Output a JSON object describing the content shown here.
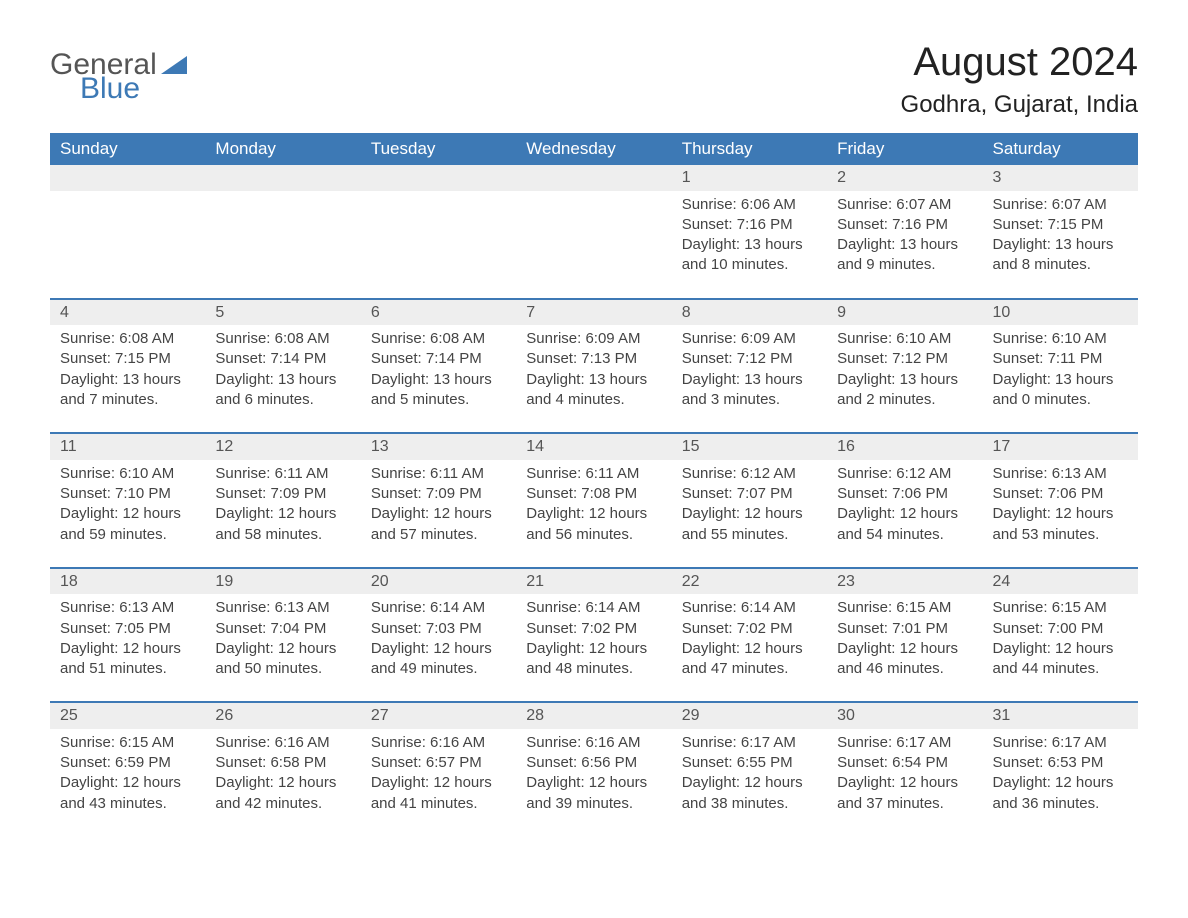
{
  "logo": {
    "general": "General",
    "blue": "Blue",
    "icon_color": "#3d79b5"
  },
  "title": "August 2024",
  "location": "Godhra, Gujarat, India",
  "colors": {
    "header_bg": "#3d79b5",
    "header_text": "#ffffff",
    "daynum_bg": "#eeeeee",
    "row_border": "#3d79b5",
    "body_text": "#444444",
    "page_bg": "#ffffff"
  },
  "day_names": [
    "Sunday",
    "Monday",
    "Tuesday",
    "Wednesday",
    "Thursday",
    "Friday",
    "Saturday"
  ],
  "weeks": [
    [
      null,
      null,
      null,
      null,
      {
        "n": "1",
        "sunrise": "Sunrise: 6:06 AM",
        "sunset": "Sunset: 7:16 PM",
        "daylight": "Daylight: 13 hours and 10 minutes."
      },
      {
        "n": "2",
        "sunrise": "Sunrise: 6:07 AM",
        "sunset": "Sunset: 7:16 PM",
        "daylight": "Daylight: 13 hours and 9 minutes."
      },
      {
        "n": "3",
        "sunrise": "Sunrise: 6:07 AM",
        "sunset": "Sunset: 7:15 PM",
        "daylight": "Daylight: 13 hours and 8 minutes."
      }
    ],
    [
      {
        "n": "4",
        "sunrise": "Sunrise: 6:08 AM",
        "sunset": "Sunset: 7:15 PM",
        "daylight": "Daylight: 13 hours and 7 minutes."
      },
      {
        "n": "5",
        "sunrise": "Sunrise: 6:08 AM",
        "sunset": "Sunset: 7:14 PM",
        "daylight": "Daylight: 13 hours and 6 minutes."
      },
      {
        "n": "6",
        "sunrise": "Sunrise: 6:08 AM",
        "sunset": "Sunset: 7:14 PM",
        "daylight": "Daylight: 13 hours and 5 minutes."
      },
      {
        "n": "7",
        "sunrise": "Sunrise: 6:09 AM",
        "sunset": "Sunset: 7:13 PM",
        "daylight": "Daylight: 13 hours and 4 minutes."
      },
      {
        "n": "8",
        "sunrise": "Sunrise: 6:09 AM",
        "sunset": "Sunset: 7:12 PM",
        "daylight": "Daylight: 13 hours and 3 minutes."
      },
      {
        "n": "9",
        "sunrise": "Sunrise: 6:10 AM",
        "sunset": "Sunset: 7:12 PM",
        "daylight": "Daylight: 13 hours and 2 minutes."
      },
      {
        "n": "10",
        "sunrise": "Sunrise: 6:10 AM",
        "sunset": "Sunset: 7:11 PM",
        "daylight": "Daylight: 13 hours and 0 minutes."
      }
    ],
    [
      {
        "n": "11",
        "sunrise": "Sunrise: 6:10 AM",
        "sunset": "Sunset: 7:10 PM",
        "daylight": "Daylight: 12 hours and 59 minutes."
      },
      {
        "n": "12",
        "sunrise": "Sunrise: 6:11 AM",
        "sunset": "Sunset: 7:09 PM",
        "daylight": "Daylight: 12 hours and 58 minutes."
      },
      {
        "n": "13",
        "sunrise": "Sunrise: 6:11 AM",
        "sunset": "Sunset: 7:09 PM",
        "daylight": "Daylight: 12 hours and 57 minutes."
      },
      {
        "n": "14",
        "sunrise": "Sunrise: 6:11 AM",
        "sunset": "Sunset: 7:08 PM",
        "daylight": "Daylight: 12 hours and 56 minutes."
      },
      {
        "n": "15",
        "sunrise": "Sunrise: 6:12 AM",
        "sunset": "Sunset: 7:07 PM",
        "daylight": "Daylight: 12 hours and 55 minutes."
      },
      {
        "n": "16",
        "sunrise": "Sunrise: 6:12 AM",
        "sunset": "Sunset: 7:06 PM",
        "daylight": "Daylight: 12 hours and 54 minutes."
      },
      {
        "n": "17",
        "sunrise": "Sunrise: 6:13 AM",
        "sunset": "Sunset: 7:06 PM",
        "daylight": "Daylight: 12 hours and 53 minutes."
      }
    ],
    [
      {
        "n": "18",
        "sunrise": "Sunrise: 6:13 AM",
        "sunset": "Sunset: 7:05 PM",
        "daylight": "Daylight: 12 hours and 51 minutes."
      },
      {
        "n": "19",
        "sunrise": "Sunrise: 6:13 AM",
        "sunset": "Sunset: 7:04 PM",
        "daylight": "Daylight: 12 hours and 50 minutes."
      },
      {
        "n": "20",
        "sunrise": "Sunrise: 6:14 AM",
        "sunset": "Sunset: 7:03 PM",
        "daylight": "Daylight: 12 hours and 49 minutes."
      },
      {
        "n": "21",
        "sunrise": "Sunrise: 6:14 AM",
        "sunset": "Sunset: 7:02 PM",
        "daylight": "Daylight: 12 hours and 48 minutes."
      },
      {
        "n": "22",
        "sunrise": "Sunrise: 6:14 AM",
        "sunset": "Sunset: 7:02 PM",
        "daylight": "Daylight: 12 hours and 47 minutes."
      },
      {
        "n": "23",
        "sunrise": "Sunrise: 6:15 AM",
        "sunset": "Sunset: 7:01 PM",
        "daylight": "Daylight: 12 hours and 46 minutes."
      },
      {
        "n": "24",
        "sunrise": "Sunrise: 6:15 AM",
        "sunset": "Sunset: 7:00 PM",
        "daylight": "Daylight: 12 hours and 44 minutes."
      }
    ],
    [
      {
        "n": "25",
        "sunrise": "Sunrise: 6:15 AM",
        "sunset": "Sunset: 6:59 PM",
        "daylight": "Daylight: 12 hours and 43 minutes."
      },
      {
        "n": "26",
        "sunrise": "Sunrise: 6:16 AM",
        "sunset": "Sunset: 6:58 PM",
        "daylight": "Daylight: 12 hours and 42 minutes."
      },
      {
        "n": "27",
        "sunrise": "Sunrise: 6:16 AM",
        "sunset": "Sunset: 6:57 PM",
        "daylight": "Daylight: 12 hours and 41 minutes."
      },
      {
        "n": "28",
        "sunrise": "Sunrise: 6:16 AM",
        "sunset": "Sunset: 6:56 PM",
        "daylight": "Daylight: 12 hours and 39 minutes."
      },
      {
        "n": "29",
        "sunrise": "Sunrise: 6:17 AM",
        "sunset": "Sunset: 6:55 PM",
        "daylight": "Daylight: 12 hours and 38 minutes."
      },
      {
        "n": "30",
        "sunrise": "Sunrise: 6:17 AM",
        "sunset": "Sunset: 6:54 PM",
        "daylight": "Daylight: 12 hours and 37 minutes."
      },
      {
        "n": "31",
        "sunrise": "Sunrise: 6:17 AM",
        "sunset": "Sunset: 6:53 PM",
        "daylight": "Daylight: 12 hours and 36 minutes."
      }
    ]
  ]
}
